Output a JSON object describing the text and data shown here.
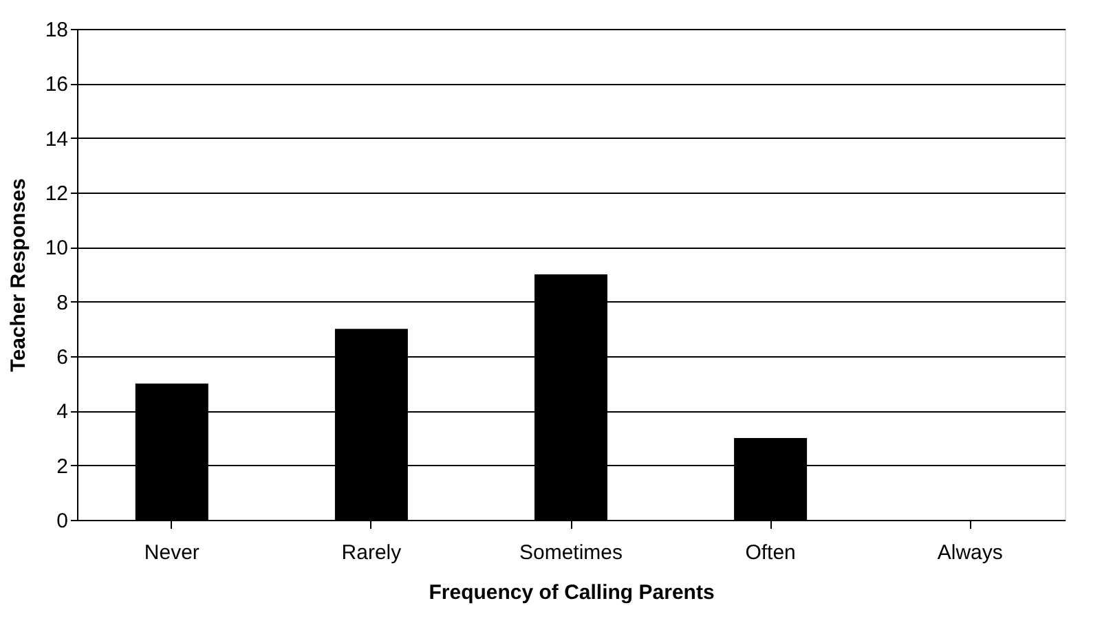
{
  "chart_data": {
    "type": "bar",
    "xlabel": "Frequency of Calling Parents",
    "ylabel": "Teacher Responses",
    "categories": [
      "Never",
      "Rarely",
      "Sometimes",
      "Often",
      "Always"
    ],
    "values": [
      5,
      7,
      9,
      3,
      0
    ],
    "color": "#000000",
    "ylim": [
      0,
      18
    ],
    "yticks": [
      0,
      2,
      4,
      6,
      8,
      10,
      12,
      14,
      16,
      18
    ],
    "grid": "y"
  }
}
